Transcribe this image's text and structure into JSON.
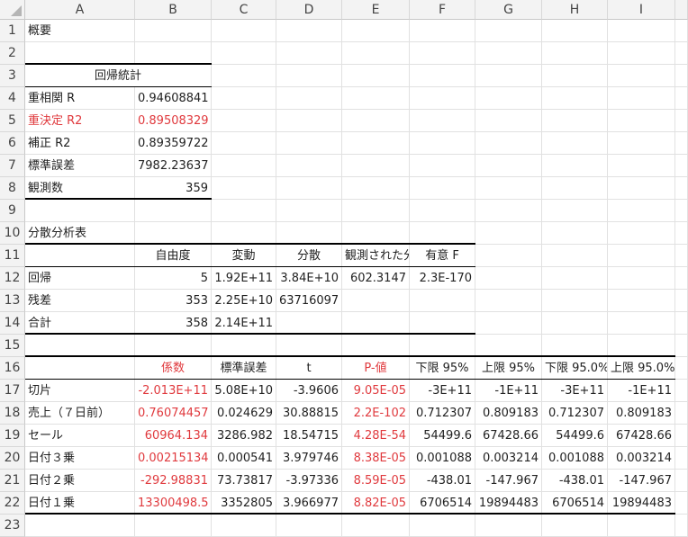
{
  "columns": [
    "A",
    "B",
    "C",
    "D",
    "E",
    "F",
    "G",
    "H",
    "I",
    ""
  ],
  "accent_red": "#e03a3e",
  "rows": [
    {
      "num": "1",
      "cells": [
        "概要",
        "",
        "",
        "",
        "",
        "",
        "",
        "",
        ""
      ]
    },
    {
      "num": "2",
      "cells": [
        "",
        "",
        "",
        "",
        "",
        "",
        "",
        "",
        ""
      ]
    },
    {
      "num": "3",
      "cells": [
        "回帰統計",
        "",
        "",
        "",
        "",
        "",
        "",
        "",
        ""
      ]
    },
    {
      "num": "4",
      "cells": [
        "重相関 R",
        "0.94608841",
        "",
        "",
        "",
        "",
        "",
        "",
        ""
      ]
    },
    {
      "num": "5",
      "cells": [
        "重決定 R2",
        "0.89508329",
        "",
        "",
        "",
        "",
        "",
        "",
        ""
      ]
    },
    {
      "num": "6",
      "cells": [
        "補正 R2",
        "0.89359722",
        "",
        "",
        "",
        "",
        "",
        "",
        ""
      ]
    },
    {
      "num": "7",
      "cells": [
        "標準誤差",
        "7982.23637",
        "",
        "",
        "",
        "",
        "",
        "",
        ""
      ]
    },
    {
      "num": "8",
      "cells": [
        "観測数",
        "359",
        "",
        "",
        "",
        "",
        "",
        "",
        ""
      ]
    },
    {
      "num": "9",
      "cells": [
        "",
        "",
        "",
        "",
        "",
        "",
        "",
        "",
        ""
      ]
    },
    {
      "num": "10",
      "cells": [
        "分散分析表",
        "",
        "",
        "",
        "",
        "",
        "",
        "",
        ""
      ]
    },
    {
      "num": "11",
      "cells": [
        "",
        "自由度",
        "変動",
        "分散",
        "観測された分散比",
        "有意 F",
        "",
        "",
        ""
      ]
    },
    {
      "num": "12",
      "cells": [
        "回帰",
        "5",
        "1.92E+11",
        "3.84E+10",
        "602.3147",
        "2.3E-170",
        "",
        "",
        ""
      ]
    },
    {
      "num": "13",
      "cells": [
        "残差",
        "353",
        "2.25E+10",
        "63716097",
        "",
        "",
        "",
        "",
        ""
      ]
    },
    {
      "num": "14",
      "cells": [
        "合計",
        "358",
        "2.14E+11",
        "",
        "",
        "",
        "",
        "",
        ""
      ]
    },
    {
      "num": "15",
      "cells": [
        "",
        "",
        "",
        "",
        "",
        "",
        "",
        "",
        ""
      ]
    },
    {
      "num": "16",
      "cells": [
        "",
        "係数",
        "標準誤差",
        "t",
        "P-値",
        "下限 95%",
        "上限 95%",
        "下限 95.0%",
        "上限 95.0%"
      ]
    },
    {
      "num": "17",
      "cells": [
        "切片",
        "-2.013E+11",
        "5.08E+10",
        "-3.9606",
        "9.05E-05",
        "-3E+11",
        "-1E+11",
        "-3E+11",
        "-1E+11"
      ]
    },
    {
      "num": "18",
      "cells": [
        "売上（７日前）",
        "0.76074457",
        "0.024629",
        "30.88815",
        "2.2E-102",
        "0.712307",
        "0.809183",
        "0.712307",
        "0.809183"
      ]
    },
    {
      "num": "19",
      "cells": [
        "セール",
        "60964.134",
        "3286.982",
        "18.54715",
        "4.28E-54",
        "54499.6",
        "67428.66",
        "54499.6",
        "67428.66"
      ]
    },
    {
      "num": "20",
      "cells": [
        "日付３乗",
        "0.00215134",
        "0.000541",
        "3.979746",
        "8.38E-05",
        "0.001088",
        "0.003214",
        "0.001088",
        "0.003214"
      ]
    },
    {
      "num": "21",
      "cells": [
        "日付２乗",
        "-292.98831",
        "73.73817",
        "-3.97336",
        "8.59E-05",
        "-438.01",
        "-147.967",
        "-438.01",
        "-147.967"
      ]
    },
    {
      "num": "22",
      "cells": [
        "日付１乗",
        "13300498.5",
        "3352805",
        "3.966977",
        "8.82E-05",
        "6706514",
        "19894483",
        "6706514",
        "19894483"
      ]
    },
    {
      "num": "23",
      "cells": [
        "",
        "",
        "",
        "",
        "",
        "",
        "",
        "",
        ""
      ]
    }
  ]
}
